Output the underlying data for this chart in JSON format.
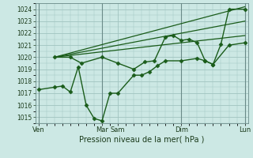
{
  "bg_color": "#cce8e4",
  "grid_color": "#a0c4c0",
  "line_color": "#1a5c1a",
  "xlabel": "Pression niveau de la mer( hPa )",
  "ylim": [
    1014.5,
    1024.5
  ],
  "yticks": [
    1015,
    1016,
    1017,
    1018,
    1019,
    1020,
    1021,
    1022,
    1023,
    1024
  ],
  "xlim": [
    -0.2,
    13.2
  ],
  "vline_positions": [
    0,
    4.0,
    9.0,
    13.0
  ],
  "xtick_positions": [
    0,
    4.0,
    5.0,
    9.0,
    13.0
  ],
  "xtick_labels": [
    "Ven",
    "Mar",
    "Sam",
    "Dim",
    "Lun"
  ],
  "series_main": {
    "x": [
      1.0,
      2.0,
      2.7,
      4.0,
      5.0,
      6.0,
      6.7,
      7.3,
      8.0,
      8.5,
      9.0,
      9.5,
      10.0,
      10.5,
      11.0,
      11.5,
      12.0,
      13.0
    ],
    "y": [
      1020.0,
      1020.0,
      1019.5,
      1020.0,
      1019.5,
      1019.0,
      1019.6,
      1019.7,
      1021.7,
      1021.8,
      1021.4,
      1021.5,
      1021.2,
      1019.7,
      1019.4,
      1021.1,
      1024.0,
      1024.0
    ]
  },
  "series_fan": [
    {
      "x": [
        1.0,
        13.0
      ],
      "y": [
        1020.0,
        1024.2
      ]
    },
    {
      "x": [
        1.0,
        13.0
      ],
      "y": [
        1020.0,
        1023.0
      ]
    },
    {
      "x": [
        1.0,
        13.0
      ],
      "y": [
        1020.0,
        1021.8
      ]
    }
  ],
  "series_lower": {
    "x": [
      0.0,
      1.0,
      1.5,
      2.0,
      2.5,
      3.0,
      3.5,
      4.0,
      4.5,
      5.0,
      6.0,
      6.5,
      7.0,
      7.5,
      8.0,
      9.0,
      10.0,
      10.5,
      11.0,
      12.0,
      13.0
    ],
    "y": [
      1017.3,
      1017.5,
      1017.6,
      1017.1,
      1019.2,
      1016.0,
      1014.9,
      1014.7,
      1017.0,
      1017.0,
      1018.5,
      1018.5,
      1018.8,
      1019.3,
      1019.7,
      1019.7,
      1019.9,
      1019.7,
      1019.4,
      1021.0,
      1021.2
    ]
  }
}
